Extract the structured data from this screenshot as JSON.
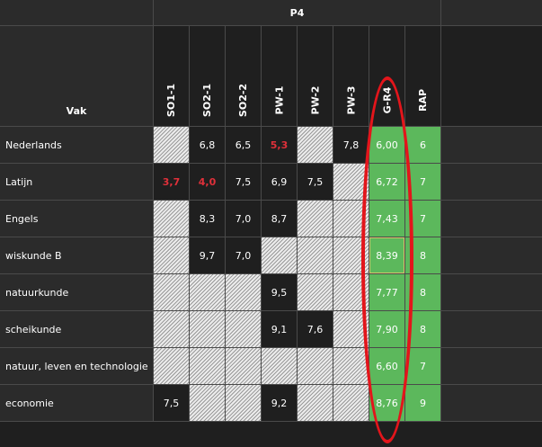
{
  "header": {
    "period": "P4",
    "vak_label": "Vak",
    "columns": [
      "SO1-1",
      "SO2-1",
      "SO2-2",
      "PW-1",
      "PW-2",
      "PW-3",
      "G-R4",
      "RAP"
    ]
  },
  "rows": [
    {
      "subject": "Nederlands",
      "cells": [
        {
          "kind": "hatch"
        },
        {
          "kind": "val",
          "text": "6,8"
        },
        {
          "kind": "val",
          "text": "6,5"
        },
        {
          "kind": "val",
          "text": "5,3",
          "red": true
        },
        {
          "kind": "hatch"
        },
        {
          "kind": "val",
          "text": "7,8"
        },
        {
          "kind": "green",
          "text": "6,00"
        },
        {
          "kind": "green",
          "text": "6"
        }
      ]
    },
    {
      "subject": "Latijn",
      "cells": [
        {
          "kind": "val",
          "text": "3,7",
          "red": true
        },
        {
          "kind": "val",
          "text": "4,0",
          "red": true
        },
        {
          "kind": "val",
          "text": "7,5"
        },
        {
          "kind": "val",
          "text": "6,9"
        },
        {
          "kind": "val",
          "text": "7,5"
        },
        {
          "kind": "hatch"
        },
        {
          "kind": "green",
          "text": "6,72"
        },
        {
          "kind": "green",
          "text": "7"
        }
      ]
    },
    {
      "subject": "Engels",
      "cells": [
        {
          "kind": "hatch"
        },
        {
          "kind": "val",
          "text": "8,3"
        },
        {
          "kind": "val",
          "text": "7,0"
        },
        {
          "kind": "val",
          "text": "8,7"
        },
        {
          "kind": "hatch"
        },
        {
          "kind": "hatch"
        },
        {
          "kind": "green",
          "text": "7,43"
        },
        {
          "kind": "green",
          "text": "7"
        }
      ]
    },
    {
      "subject": "wiskunde B",
      "cells": [
        {
          "kind": "hatch"
        },
        {
          "kind": "val",
          "text": "9,7"
        },
        {
          "kind": "val",
          "text": "7,0"
        },
        {
          "kind": "hatch"
        },
        {
          "kind": "hatch"
        },
        {
          "kind": "hatch"
        },
        {
          "kind": "green",
          "text": "8,39",
          "selected": true
        },
        {
          "kind": "green",
          "text": "8"
        }
      ]
    },
    {
      "subject": "natuurkunde",
      "cells": [
        {
          "kind": "hatch"
        },
        {
          "kind": "hatch"
        },
        {
          "kind": "hatch"
        },
        {
          "kind": "val",
          "text": "9,5"
        },
        {
          "kind": "hatch"
        },
        {
          "kind": "hatch"
        },
        {
          "kind": "green",
          "text": "7,77"
        },
        {
          "kind": "green",
          "text": "8"
        }
      ]
    },
    {
      "subject": "scheikunde",
      "cells": [
        {
          "kind": "hatch"
        },
        {
          "kind": "hatch"
        },
        {
          "kind": "hatch"
        },
        {
          "kind": "val",
          "text": "9,1"
        },
        {
          "kind": "val",
          "text": "7,6"
        },
        {
          "kind": "hatch"
        },
        {
          "kind": "green",
          "text": "7,90"
        },
        {
          "kind": "green",
          "text": "8"
        }
      ]
    },
    {
      "subject": "natuur, leven en technologie",
      "cells": [
        {
          "kind": "hatch"
        },
        {
          "kind": "hatch"
        },
        {
          "kind": "hatch"
        },
        {
          "kind": "hatch"
        },
        {
          "kind": "hatch"
        },
        {
          "kind": "hatch"
        },
        {
          "kind": "green",
          "text": "6,60"
        },
        {
          "kind": "green",
          "text": "7"
        }
      ]
    },
    {
      "subject": "economie",
      "cells": [
        {
          "kind": "val",
          "text": "7,5"
        },
        {
          "kind": "hatch"
        },
        {
          "kind": "hatch"
        },
        {
          "kind": "val",
          "text": "9,2"
        },
        {
          "kind": "hatch"
        },
        {
          "kind": "hatch"
        },
        {
          "kind": "green",
          "text": "8,76"
        },
        {
          "kind": "green",
          "text": "9"
        }
      ]
    }
  ],
  "colors": {
    "green": "#5cb85c",
    "red_grade": "#e0303a",
    "annotation": "#e3151b"
  },
  "annotation": "red-ellipse-around-G-R4-column"
}
